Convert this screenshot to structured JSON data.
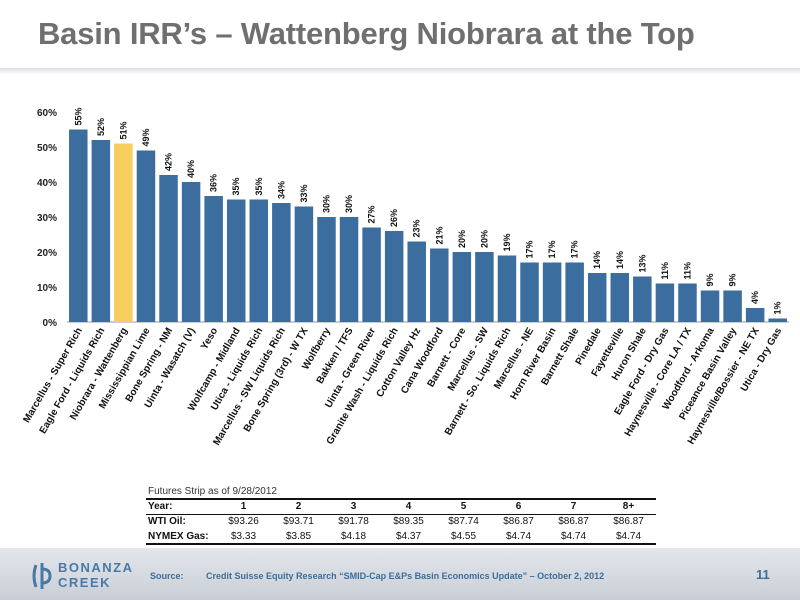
{
  "header": {
    "title": "Basin IRR’s – Wattenberg Niobrara at the Top"
  },
  "chart_data": {
    "type": "bar",
    "ylim": [
      0,
      60
    ],
    "yticks": [
      "0%",
      "10%",
      "20%",
      "30%",
      "40%",
      "50%",
      "60%"
    ],
    "ytick_values": [
      0,
      10,
      20,
      30,
      40,
      50,
      60
    ],
    "value_suffix": "%",
    "colors": {
      "default": "#3b6e9f",
      "highlight": "#f7cd5d"
    },
    "highlight_category": "Niobrara - Wattenberg",
    "categories": [
      "Marcellus - Super Rich",
      "Eagle Ford - Liquids Rich",
      "Niobrara - Wattenberg",
      "Mississippian Lime",
      "Bone Spring - NM",
      "Uinta - Wasatch (V)",
      "Yeso",
      "Wolfcamp - Midland",
      "Utica - Liquids Rich",
      "Marcellus - SW Liquids Rich",
      "Bone Spring (3rd) - W TX",
      "Wolfberry",
      "Bakken / TFS",
      "Uinta - Green River",
      "Granite Wash - Liquids Rich",
      "Cotton Valley Hz",
      "Cana Woodford",
      "Barnett - Core",
      "Marcellus - SW",
      "Barnett - So. Liquids Rich",
      "Marcellus - NE",
      "Horn River Basin",
      "Barnett Shale",
      "Pinedale",
      "Fayetteville",
      "Huron Shale",
      "Eagle Ford - Dry Gas",
      "Haynesville - Core LA / TX",
      "Woodford - Arkoma",
      "Piceance Basin Valley",
      "Haynesville/Bossier - NE TX",
      "Utica - Dry Gas"
    ],
    "values": [
      55,
      52,
      51,
      49,
      42,
      40,
      36,
      35,
      35,
      34,
      33,
      30,
      30,
      27,
      26,
      23,
      21,
      20,
      20,
      19,
      17,
      17,
      17,
      14,
      14,
      13,
      11,
      11,
      9,
      9,
      4,
      1
    ]
  },
  "strip": {
    "caption": "Futures Strip as of 9/28/2012",
    "header_label": "Year:",
    "years": [
      "1",
      "2",
      "3",
      "4",
      "5",
      "6",
      "7",
      "8+"
    ],
    "rows": [
      {
        "label": "WTI Oil:",
        "values": [
          "$93.26",
          "$93.71",
          "$91.78",
          "$89.35",
          "$87.74",
          "$86.87",
          "$86.87",
          "$86.87"
        ]
      },
      {
        "label": "NYMEX Gas:",
        "values": [
          "$3.33",
          "$3.85",
          "$4.18",
          "$4.37",
          "$4.55",
          "$4.74",
          "$4.74",
          "$4.74"
        ]
      }
    ]
  },
  "footer": {
    "logo_line1": "BONANZA",
    "logo_line2": "CREEK",
    "source_label": "Source:",
    "source_text": "Credit Suisse Equity Research “SMID-Cap E&Ps Basin Economics Update” – October 2, 2012",
    "page_number": "11"
  }
}
